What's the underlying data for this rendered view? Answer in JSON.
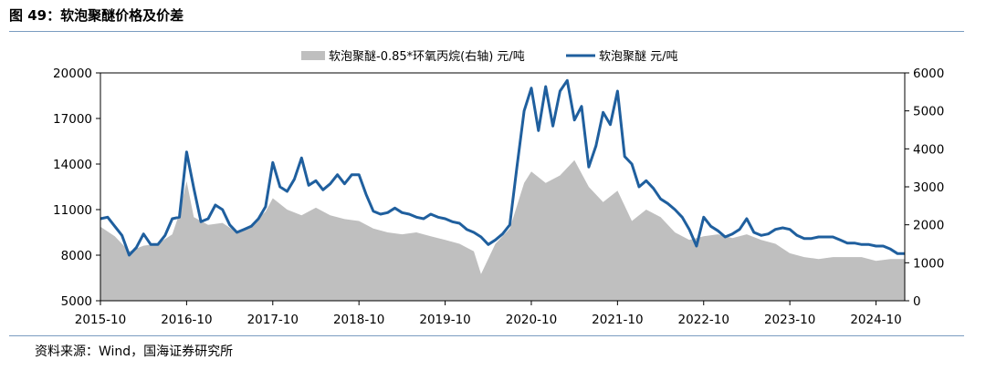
{
  "figure": {
    "title": "图 49：软泡聚醚价格及价差",
    "source": "资料来源：Wind，国海证券研究所"
  },
  "chart_data": {
    "type": "line",
    "x_labels": [
      "2015-10",
      "2016-10",
      "2017-10",
      "2018-10",
      "2019-10",
      "2020-10",
      "2021-10",
      "2022-10",
      "2023-10",
      "2024-10"
    ],
    "x_range": [
      "2015-10",
      "2025-02"
    ],
    "y_left": {
      "lim": [
        5000,
        20000
      ],
      "ticks": [
        5000,
        8000,
        11000,
        14000,
        17000,
        20000
      ]
    },
    "y_right": {
      "lim": [
        0,
        6000
      ],
      "ticks": [
        0,
        1000,
        2000,
        3000,
        4000,
        5000,
        6000
      ]
    },
    "grid": false,
    "legend_position": "top-center",
    "series": [
      {
        "name": "软泡聚醚-0.85*环氧丙烷(右轴) 元/吨",
        "type": "area",
        "axis": "right",
        "color": "#bfbfbf",
        "points": [
          [
            "2015-10",
            1950
          ],
          [
            "2015-12",
            1700
          ],
          [
            "2016-02",
            1300
          ],
          [
            "2016-04",
            1450
          ],
          [
            "2016-06",
            1500
          ],
          [
            "2016-08",
            1750
          ],
          [
            "2016-09",
            2300
          ],
          [
            "2016-10",
            3150
          ],
          [
            "2016-11",
            2200
          ],
          [
            "2017-01",
            2000
          ],
          [
            "2017-03",
            2050
          ],
          [
            "2017-05",
            1800
          ],
          [
            "2017-07",
            2000
          ],
          [
            "2017-09",
            2350
          ],
          [
            "2017-10",
            2700
          ],
          [
            "2017-12",
            2400
          ],
          [
            "2018-02",
            2250
          ],
          [
            "2018-04",
            2450
          ],
          [
            "2018-06",
            2250
          ],
          [
            "2018-08",
            2150
          ],
          [
            "2018-10",
            2100
          ],
          [
            "2018-12",
            1900
          ],
          [
            "2019-02",
            1800
          ],
          [
            "2019-04",
            1750
          ],
          [
            "2019-06",
            1800
          ],
          [
            "2019-08",
            1700
          ],
          [
            "2019-10",
            1600
          ],
          [
            "2019-12",
            1500
          ],
          [
            "2020-02",
            1300
          ],
          [
            "2020-03",
            700
          ],
          [
            "2020-05",
            1500
          ],
          [
            "2020-07",
            1900
          ],
          [
            "2020-09",
            3100
          ],
          [
            "2020-10",
            3400
          ],
          [
            "2020-12",
            3100
          ],
          [
            "2021-02",
            3300
          ],
          [
            "2021-04",
            3700
          ],
          [
            "2021-06",
            3000
          ],
          [
            "2021-08",
            2600
          ],
          [
            "2021-10",
            2900
          ],
          [
            "2021-12",
            2100
          ],
          [
            "2022-02",
            2400
          ],
          [
            "2022-04",
            2200
          ],
          [
            "2022-06",
            1800
          ],
          [
            "2022-08",
            1600
          ],
          [
            "2022-10",
            1700
          ],
          [
            "2022-12",
            1750
          ],
          [
            "2023-02",
            1650
          ],
          [
            "2023-04",
            1750
          ],
          [
            "2023-06",
            1600
          ],
          [
            "2023-08",
            1500
          ],
          [
            "2023-10",
            1250
          ],
          [
            "2023-12",
            1150
          ],
          [
            "2024-02",
            1100
          ],
          [
            "2024-04",
            1150
          ],
          [
            "2024-06",
            1150
          ],
          [
            "2024-08",
            1150
          ],
          [
            "2024-10",
            1050
          ],
          [
            "2024-12",
            1100
          ],
          [
            "2025-02",
            1100
          ]
        ]
      },
      {
        "name": "软泡聚醚 元/吨",
        "type": "line",
        "axis": "left",
        "color": "#1f5f9e",
        "points": [
          [
            "2015-10",
            10400
          ],
          [
            "2015-11",
            10500
          ],
          [
            "2015-12",
            9900
          ],
          [
            "2016-01",
            9300
          ],
          [
            "2016-02",
            8000
          ],
          [
            "2016-03",
            8500
          ],
          [
            "2016-04",
            9400
          ],
          [
            "2016-05",
            8700
          ],
          [
            "2016-06",
            8700
          ],
          [
            "2016-07",
            9300
          ],
          [
            "2016-08",
            10400
          ],
          [
            "2016-09",
            10500
          ],
          [
            "2016-10",
            14800
          ],
          [
            "2016-11",
            12400
          ],
          [
            "2016-12",
            10200
          ],
          [
            "2017-01",
            10400
          ],
          [
            "2017-02",
            11300
          ],
          [
            "2017-03",
            11000
          ],
          [
            "2017-04",
            10000
          ],
          [
            "2017-05",
            9500
          ],
          [
            "2017-06",
            9700
          ],
          [
            "2017-07",
            9900
          ],
          [
            "2017-08",
            10400
          ],
          [
            "2017-09",
            11200
          ],
          [
            "2017-10",
            14100
          ],
          [
            "2017-11",
            12500
          ],
          [
            "2017-12",
            12200
          ],
          [
            "2018-01",
            13000
          ],
          [
            "2018-02",
            14400
          ],
          [
            "2018-03",
            12600
          ],
          [
            "2018-04",
            12900
          ],
          [
            "2018-05",
            12300
          ],
          [
            "2018-06",
            12700
          ],
          [
            "2018-07",
            13300
          ],
          [
            "2018-08",
            12700
          ],
          [
            "2018-09",
            13300
          ],
          [
            "2018-10",
            13300
          ],
          [
            "2018-11",
            12000
          ],
          [
            "2018-12",
            10900
          ],
          [
            "2019-01",
            10700
          ],
          [
            "2019-02",
            10800
          ],
          [
            "2019-03",
            11100
          ],
          [
            "2019-04",
            10800
          ],
          [
            "2019-05",
            10700
          ],
          [
            "2019-06",
            10500
          ],
          [
            "2019-07",
            10400
          ],
          [
            "2019-08",
            10700
          ],
          [
            "2019-09",
            10500
          ],
          [
            "2019-10",
            10400
          ],
          [
            "2019-11",
            10200
          ],
          [
            "2019-12",
            10100
          ],
          [
            "2020-01",
            9700
          ],
          [
            "2020-02",
            9500
          ],
          [
            "2020-03",
            9200
          ],
          [
            "2020-04",
            8700
          ],
          [
            "2020-05",
            9000
          ],
          [
            "2020-06",
            9400
          ],
          [
            "2020-07",
            10000
          ],
          [
            "2020-08",
            13800
          ],
          [
            "2020-09",
            17500
          ],
          [
            "2020-10",
            19000
          ],
          [
            "2020-11",
            16200
          ],
          [
            "2020-12",
            19100
          ],
          [
            "2021-01",
            16500
          ],
          [
            "2021-02",
            18800
          ],
          [
            "2021-03",
            19500
          ],
          [
            "2021-04",
            16900
          ],
          [
            "2021-05",
            17800
          ],
          [
            "2021-06",
            13800
          ],
          [
            "2021-07",
            15200
          ],
          [
            "2021-08",
            17400
          ],
          [
            "2021-09",
            16600
          ],
          [
            "2021-10",
            18800
          ],
          [
            "2021-11",
            14500
          ],
          [
            "2021-12",
            14000
          ],
          [
            "2022-01",
            12500
          ],
          [
            "2022-02",
            12900
          ],
          [
            "2022-03",
            12400
          ],
          [
            "2022-04",
            11700
          ],
          [
            "2022-05",
            11400
          ],
          [
            "2022-06",
            11000
          ],
          [
            "2022-07",
            10500
          ],
          [
            "2022-08",
            9700
          ],
          [
            "2022-09",
            8600
          ],
          [
            "2022-10",
            10500
          ],
          [
            "2022-11",
            9900
          ],
          [
            "2022-12",
            9600
          ],
          [
            "2023-01",
            9200
          ],
          [
            "2023-02",
            9400
          ],
          [
            "2023-03",
            9700
          ],
          [
            "2023-04",
            10400
          ],
          [
            "2023-05",
            9500
          ],
          [
            "2023-06",
            9300
          ],
          [
            "2023-07",
            9400
          ],
          [
            "2023-08",
            9700
          ],
          [
            "2023-09",
            9800
          ],
          [
            "2023-10",
            9700
          ],
          [
            "2023-11",
            9300
          ],
          [
            "2023-12",
            9100
          ],
          [
            "2024-01",
            9100
          ],
          [
            "2024-02",
            9200
          ],
          [
            "2024-03",
            9200
          ],
          [
            "2024-04",
            9200
          ],
          [
            "2024-05",
            9000
          ],
          [
            "2024-06",
            8800
          ],
          [
            "2024-07",
            8800
          ],
          [
            "2024-08",
            8700
          ],
          [
            "2024-09",
            8700
          ],
          [
            "2024-10",
            8600
          ],
          [
            "2024-11",
            8600
          ],
          [
            "2024-12",
            8400
          ],
          [
            "2025-01",
            8100
          ],
          [
            "2025-02",
            8100
          ]
        ]
      }
    ]
  }
}
